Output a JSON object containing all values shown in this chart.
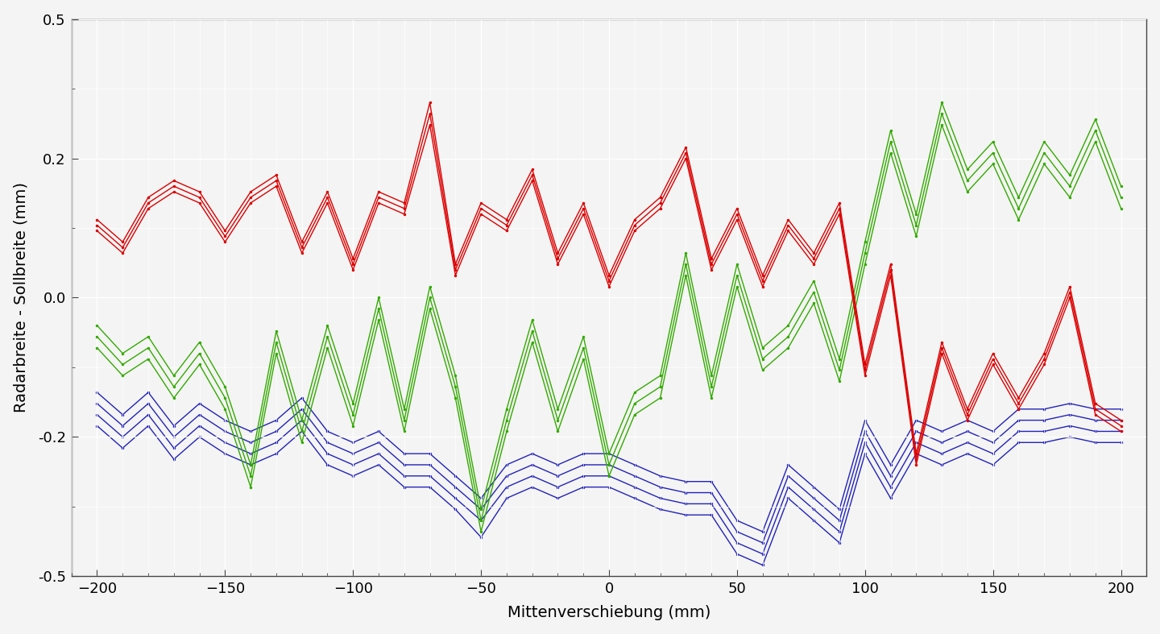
{
  "xlabel": "Mittenverschiebung (mm)",
  "ylabel": "Radarbreite - Sollbreite (mm)",
  "xlim": [
    -210,
    210
  ],
  "ylim": [
    -0.5,
    0.5
  ],
  "xticks": [
    -200,
    -150,
    -100,
    -50,
    0,
    50,
    100,
    150,
    200
  ],
  "yticks": [
    -0.5,
    -0.25,
    0,
    0.25,
    0.5
  ],
  "background_color": "#f4f4f4",
  "grid_color": "#ffffff",
  "red_color": "#dd0000",
  "green_color": "#33aa00",
  "blue_color": "#2222bb",
  "x_values": [
    -200,
    -190,
    -180,
    -170,
    -160,
    -150,
    -140,
    -130,
    -120,
    -110,
    -100,
    -90,
    -80,
    -70,
    -60,
    -50,
    -40,
    -30,
    -20,
    -10,
    0,
    10,
    20,
    30,
    40,
    50,
    60,
    70,
    80,
    90,
    100,
    110,
    120,
    130,
    140,
    150,
    160,
    170,
    180,
    190,
    200
  ],
  "red_series": [
    [
      0.14,
      0.1,
      0.18,
      0.21,
      0.19,
      0.12,
      0.19,
      0.22,
      0.1,
      0.19,
      0.07,
      0.19,
      0.17,
      0.35,
      0.06,
      0.17,
      0.14,
      0.23,
      0.08,
      0.17,
      0.04,
      0.14,
      0.18,
      0.27,
      0.07,
      0.16,
      0.04,
      0.14,
      0.08,
      0.17,
      -0.12,
      0.06,
      -0.28,
      -0.08,
      -0.2,
      -0.1,
      -0.18,
      -0.1,
      0.02,
      -0.19,
      -0.22
    ],
    [
      0.13,
      0.09,
      0.17,
      0.2,
      0.18,
      0.11,
      0.18,
      0.21,
      0.09,
      0.18,
      0.06,
      0.18,
      0.16,
      0.33,
      0.05,
      0.16,
      0.13,
      0.22,
      0.07,
      0.16,
      0.03,
      0.13,
      0.17,
      0.26,
      0.06,
      0.15,
      0.03,
      0.13,
      0.07,
      0.16,
      -0.13,
      0.05,
      -0.29,
      -0.09,
      -0.21,
      -0.11,
      -0.19,
      -0.11,
      0.01,
      -0.2,
      -0.23
    ],
    [
      0.12,
      0.08,
      0.16,
      0.19,
      0.17,
      0.1,
      0.17,
      0.2,
      0.08,
      0.17,
      0.05,
      0.17,
      0.15,
      0.31,
      0.04,
      0.15,
      0.12,
      0.21,
      0.06,
      0.15,
      0.02,
      0.12,
      0.16,
      0.25,
      0.05,
      0.14,
      0.02,
      0.12,
      0.06,
      0.15,
      -0.14,
      0.04,
      -0.3,
      -0.1,
      -0.22,
      -0.12,
      -0.2,
      -0.12,
      0.0,
      -0.21,
      -0.24
    ]
  ],
  "green_series": [
    [
      -0.05,
      -0.1,
      -0.07,
      -0.14,
      -0.08,
      -0.16,
      -0.3,
      -0.06,
      -0.22,
      -0.05,
      -0.19,
      0.0,
      -0.2,
      0.02,
      -0.14,
      -0.38,
      -0.2,
      -0.04,
      -0.2,
      -0.07,
      -0.28,
      -0.17,
      -0.14,
      0.08,
      -0.14,
      0.06,
      -0.09,
      -0.05,
      0.03,
      -0.11,
      0.1,
      0.3,
      0.15,
      0.35,
      0.23,
      0.28,
      0.18,
      0.28,
      0.22,
      0.32,
      0.2
    ],
    [
      -0.07,
      -0.12,
      -0.09,
      -0.16,
      -0.1,
      -0.18,
      -0.32,
      -0.08,
      -0.24,
      -0.07,
      -0.21,
      -0.02,
      -0.22,
      0.0,
      -0.16,
      -0.4,
      -0.22,
      -0.06,
      -0.22,
      -0.09,
      -0.3,
      -0.19,
      -0.16,
      0.06,
      -0.16,
      0.04,
      -0.11,
      -0.07,
      0.01,
      -0.13,
      0.08,
      0.28,
      0.13,
      0.33,
      0.21,
      0.26,
      0.16,
      0.26,
      0.2,
      0.3,
      0.18
    ],
    [
      -0.09,
      -0.14,
      -0.11,
      -0.18,
      -0.12,
      -0.2,
      -0.34,
      -0.1,
      -0.26,
      -0.09,
      -0.23,
      -0.04,
      -0.24,
      -0.02,
      -0.18,
      -0.42,
      -0.24,
      -0.08,
      -0.24,
      -0.11,
      -0.32,
      -0.21,
      -0.18,
      0.04,
      -0.18,
      0.02,
      -0.13,
      -0.09,
      -0.01,
      -0.15,
      0.06,
      0.26,
      0.11,
      0.31,
      0.19,
      0.24,
      0.14,
      0.24,
      0.18,
      0.28,
      0.16
    ]
  ],
  "blue_series": [
    [
      -0.17,
      -0.21,
      -0.17,
      -0.23,
      -0.19,
      -0.22,
      -0.24,
      -0.22,
      -0.18,
      -0.24,
      -0.26,
      -0.24,
      -0.28,
      -0.28,
      -0.32,
      -0.36,
      -0.3,
      -0.28,
      -0.3,
      -0.28,
      -0.28,
      -0.3,
      -0.32,
      -0.33,
      -0.33,
      -0.4,
      -0.42,
      -0.3,
      -0.34,
      -0.38,
      -0.22,
      -0.3,
      -0.22,
      -0.24,
      -0.22,
      -0.24,
      -0.2,
      -0.2,
      -0.19,
      -0.2,
      -0.2
    ],
    [
      -0.19,
      -0.23,
      -0.19,
      -0.25,
      -0.21,
      -0.24,
      -0.26,
      -0.24,
      -0.2,
      -0.26,
      -0.28,
      -0.26,
      -0.3,
      -0.3,
      -0.34,
      -0.38,
      -0.32,
      -0.3,
      -0.32,
      -0.3,
      -0.3,
      -0.32,
      -0.34,
      -0.35,
      -0.35,
      -0.42,
      -0.44,
      -0.32,
      -0.36,
      -0.4,
      -0.24,
      -0.32,
      -0.24,
      -0.26,
      -0.24,
      -0.26,
      -0.22,
      -0.22,
      -0.21,
      -0.22,
      -0.22
    ],
    [
      -0.21,
      -0.25,
      -0.21,
      -0.27,
      -0.23,
      -0.26,
      -0.28,
      -0.26,
      -0.22,
      -0.28,
      -0.3,
      -0.28,
      -0.32,
      -0.32,
      -0.36,
      -0.4,
      -0.34,
      -0.32,
      -0.34,
      -0.32,
      -0.32,
      -0.34,
      -0.36,
      -0.37,
      -0.37,
      -0.44,
      -0.46,
      -0.34,
      -0.38,
      -0.42,
      -0.26,
      -0.34,
      -0.26,
      -0.28,
      -0.26,
      -0.28,
      -0.24,
      -0.24,
      -0.23,
      -0.24,
      -0.24
    ],
    [
      -0.23,
      -0.27,
      -0.23,
      -0.29,
      -0.25,
      -0.28,
      -0.3,
      -0.28,
      -0.24,
      -0.3,
      -0.32,
      -0.3,
      -0.34,
      -0.34,
      -0.38,
      -0.43,
      -0.36,
      -0.34,
      -0.36,
      -0.34,
      -0.34,
      -0.36,
      -0.38,
      -0.39,
      -0.39,
      -0.46,
      -0.48,
      -0.36,
      -0.4,
      -0.44,
      -0.28,
      -0.36,
      -0.28,
      -0.3,
      -0.28,
      -0.3,
      -0.26,
      -0.26,
      -0.25,
      -0.26,
      -0.26
    ]
  ],
  "linewidth": 1.0,
  "markersize": 2.5
}
